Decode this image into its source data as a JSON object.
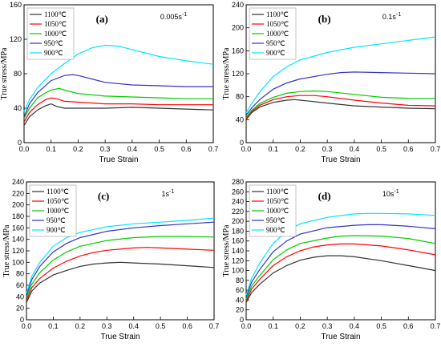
{
  "chart_data": [
    {
      "type": "line",
      "panel_label": "(a)",
      "rate_label": "0.005s",
      "rate_sup": "-1",
      "xlabel": "True Strain",
      "ylabel": "True stress/MPa",
      "xlim": [
        0,
        0.7
      ],
      "ylim": [
        0,
        160
      ],
      "xticks": [
        0.0,
        0.1,
        0.2,
        0.3,
        0.4,
        0.5,
        0.6,
        0.7
      ],
      "yticks": [
        0,
        40,
        80,
        120,
        160
      ],
      "tick_labels_x": [
        "0.0",
        "0.1",
        "0.2",
        "0.3",
        "0.4",
        "0.5",
        "0.6",
        "0.7"
      ],
      "tick_labels_y": [
        "0",
        "40",
        "80",
        "120",
        "160"
      ],
      "legend_pos": "top-left",
      "series": [
        {
          "name": "1100℃",
          "color": "#333333",
          "x": [
            0,
            0.02,
            0.05,
            0.08,
            0.1,
            0.12,
            0.15,
            0.2,
            0.3,
            0.4,
            0.5,
            0.6,
            0.7
          ],
          "y": [
            20,
            30,
            38,
            43,
            45,
            42,
            40,
            40,
            40,
            41,
            40,
            39,
            38
          ]
        },
        {
          "name": "1050℃",
          "color": "#ff0000",
          "x": [
            0,
            0.02,
            0.05,
            0.08,
            0.1,
            0.12,
            0.15,
            0.2,
            0.3,
            0.4,
            0.5,
            0.6,
            0.7
          ],
          "y": [
            24,
            35,
            44,
            50,
            52,
            51,
            48,
            47,
            45,
            45,
            44,
            44,
            44
          ]
        },
        {
          "name": "1000℃",
          "color": "#00cc00",
          "x": [
            0,
            0.02,
            0.05,
            0.08,
            0.1,
            0.13,
            0.16,
            0.2,
            0.3,
            0.4,
            0.5,
            0.6,
            0.7
          ],
          "y": [
            28,
            40,
            52,
            58,
            61,
            63,
            60,
            57,
            54,
            53,
            52,
            51,
            51
          ]
        },
        {
          "name": "950℃",
          "color": "#3333cc",
          "x": [
            0,
            0.02,
            0.05,
            0.1,
            0.15,
            0.18,
            0.2,
            0.25,
            0.3,
            0.4,
            0.5,
            0.6,
            0.7
          ],
          "y": [
            30,
            45,
            58,
            72,
            78,
            79,
            78,
            74,
            70,
            67,
            66,
            65,
            65
          ]
        },
        {
          "name": "900℃",
          "color": "#00e5ff",
          "x": [
            0,
            0.02,
            0.05,
            0.1,
            0.15,
            0.2,
            0.25,
            0.3,
            0.35,
            0.4,
            0.5,
            0.6,
            0.7
          ],
          "y": [
            36,
            50,
            64,
            80,
            92,
            103,
            110,
            113,
            112,
            108,
            100,
            95,
            91
          ]
        }
      ]
    },
    {
      "type": "line",
      "panel_label": "(b)",
      "rate_label": "0.1s",
      "rate_sup": "-1",
      "xlabel": "True Strain",
      "ylabel": "True stress/MPa",
      "xlim": [
        0,
        0.7
      ],
      "ylim": [
        0,
        240
      ],
      "xticks": [
        0.0,
        0.1,
        0.2,
        0.3,
        0.4,
        0.5,
        0.6,
        0.7
      ],
      "yticks": [
        0,
        40,
        80,
        120,
        160,
        200,
        240
      ],
      "tick_labels_x": [
        "0.0",
        "0.1",
        "0.2",
        "0.3",
        "0.4",
        "0.5",
        "0.6",
        "0.7"
      ],
      "tick_labels_y": [
        "0",
        "40",
        "80",
        "120",
        "160",
        "200",
        "240"
      ],
      "legend_pos": "top-left",
      "series": [
        {
          "name": "1100℃",
          "color": "#333333",
          "x": [
            0,
            0.02,
            0.05,
            0.1,
            0.15,
            0.18,
            0.2,
            0.3,
            0.4,
            0.5,
            0.6,
            0.7
          ],
          "y": [
            40,
            52,
            62,
            70,
            74,
            75,
            74,
            69,
            64,
            62,
            60,
            59
          ]
        },
        {
          "name": "1050℃",
          "color": "#ff0000",
          "x": [
            0,
            0.02,
            0.05,
            0.1,
            0.15,
            0.2,
            0.25,
            0.3,
            0.4,
            0.5,
            0.6,
            0.7
          ],
          "y": [
            42,
            54,
            65,
            75,
            80,
            82,
            82,
            80,
            74,
            69,
            65,
            64
          ]
        },
        {
          "name": "1000℃",
          "color": "#00cc00",
          "x": [
            0,
            0.02,
            0.05,
            0.1,
            0.15,
            0.2,
            0.25,
            0.3,
            0.4,
            0.5,
            0.6,
            0.7
          ],
          "y": [
            44,
            56,
            68,
            79,
            86,
            89,
            90,
            89,
            84,
            79,
            77,
            77
          ]
        },
        {
          "name": "950℃",
          "color": "#3333cc",
          "x": [
            0,
            0.02,
            0.05,
            0.1,
            0.15,
            0.2,
            0.3,
            0.35,
            0.4,
            0.5,
            0.6,
            0.7
          ],
          "y": [
            48,
            60,
            75,
            93,
            104,
            111,
            119,
            122,
            123,
            122,
            121,
            120
          ]
        },
        {
          "name": "900℃",
          "color": "#00e5ff",
          "x": [
            0,
            0.02,
            0.05,
            0.1,
            0.15,
            0.2,
            0.3,
            0.4,
            0.5,
            0.6,
            0.7
          ],
          "y": [
            52,
            68,
            88,
            115,
            132,
            144,
            157,
            166,
            172,
            178,
            184
          ]
        }
      ]
    },
    {
      "type": "line",
      "panel_label": "(c)",
      "rate_label": "1s",
      "rate_sup": "-1",
      "xlabel": "True Strain",
      "ylabel": "True stress/MPa",
      "xlim": [
        0,
        0.7
      ],
      "ylim": [
        0,
        240
      ],
      "xticks": [
        0.0,
        0.1,
        0.2,
        0.3,
        0.4,
        0.5,
        0.6,
        0.7
      ],
      "yticks": [
        0,
        20,
        40,
        60,
        80,
        100,
        120,
        140,
        160,
        180,
        200,
        220,
        240
      ],
      "tick_labels_x": [
        "0.0",
        "0.1",
        "0.2",
        "0.3",
        "0.4",
        "0.5",
        "0.6",
        "0.7"
      ],
      "tick_labels_y": [
        "0",
        "20",
        "40",
        "60",
        "80",
        "100",
        "120",
        "140",
        "160",
        "180",
        "200",
        "220",
        "240"
      ],
      "legend_pos": "top-left",
      "series": [
        {
          "name": "1100℃",
          "color": "#333333",
          "x": [
            0,
            0.02,
            0.05,
            0.1,
            0.15,
            0.2,
            0.25,
            0.3,
            0.35,
            0.4,
            0.5,
            0.6,
            0.7
          ],
          "y": [
            30,
            50,
            64,
            78,
            86,
            93,
            97,
            99,
            100,
            99,
            97,
            94,
            91
          ]
        },
        {
          "name": "1050℃",
          "color": "#ff0000",
          "x": [
            0,
            0.02,
            0.05,
            0.1,
            0.15,
            0.2,
            0.25,
            0.3,
            0.4,
            0.45,
            0.5,
            0.6,
            0.7
          ],
          "y": [
            34,
            56,
            72,
            90,
            102,
            111,
            117,
            121,
            125,
            126,
            125,
            123,
            121
          ]
        },
        {
          "name": "1000℃",
          "color": "#00cc00",
          "x": [
            0,
            0.02,
            0.05,
            0.1,
            0.15,
            0.2,
            0.3,
            0.4,
            0.5,
            0.6,
            0.7
          ],
          "y": [
            38,
            62,
            82,
            104,
            118,
            128,
            138,
            143,
            145,
            145,
            144
          ]
        },
        {
          "name": "950℃",
          "color": "#3333cc",
          "x": [
            0,
            0.02,
            0.05,
            0.1,
            0.15,
            0.2,
            0.3,
            0.4,
            0.5,
            0.6,
            0.7
          ],
          "y": [
            42,
            70,
            93,
            118,
            133,
            143,
            154,
            160,
            164,
            167,
            170
          ]
        },
        {
          "name": "900℃",
          "color": "#00e5ff",
          "x": [
            0,
            0.02,
            0.05,
            0.1,
            0.15,
            0.2,
            0.3,
            0.4,
            0.5,
            0.6,
            0.7
          ],
          "y": [
            46,
            76,
            100,
            128,
            143,
            152,
            162,
            167,
            170,
            173,
            177
          ]
        }
      ]
    },
    {
      "type": "line",
      "panel_label": "(d)",
      "rate_label": "10s",
      "rate_sup": "-1",
      "xlabel": "True Strain",
      "ylabel": "True stress/MPa",
      "xlim": [
        0,
        0.7
      ],
      "ylim": [
        0,
        280
      ],
      "xticks": [
        0.0,
        0.1,
        0.2,
        0.3,
        0.4,
        0.5,
        0.6,
        0.7
      ],
      "yticks": [
        0,
        20,
        40,
        60,
        80,
        100,
        120,
        140,
        160,
        180,
        200,
        220,
        240,
        260,
        280
      ],
      "tick_labels_x": [
        "0.0",
        "0.1",
        "0.2",
        "0.3",
        "0.4",
        "0.5",
        "0.6",
        "0.7"
      ],
      "tick_labels_y": [
        "0",
        "20",
        "40",
        "60",
        "80",
        "100",
        "120",
        "140",
        "160",
        "180",
        "200",
        "220",
        "240",
        "260",
        "280"
      ],
      "legend_pos": "top-left",
      "series": [
        {
          "name": "1100℃",
          "color": "#333333",
          "x": [
            0,
            0.02,
            0.05,
            0.1,
            0.15,
            0.2,
            0.25,
            0.3,
            0.35,
            0.4,
            0.5,
            0.6,
            0.7
          ],
          "y": [
            35,
            55,
            72,
            95,
            110,
            121,
            127,
            130,
            130,
            128,
            120,
            110,
            100
          ]
        },
        {
          "name": "1050℃",
          "color": "#ff0000",
          "x": [
            0,
            0.02,
            0.05,
            0.1,
            0.15,
            0.2,
            0.25,
            0.3,
            0.35,
            0.4,
            0.5,
            0.6,
            0.7
          ],
          "y": [
            38,
            62,
            82,
            110,
            128,
            140,
            148,
            152,
            154,
            154,
            150,
            142,
            132
          ]
        },
        {
          "name": "1000℃",
          "color": "#00cc00",
          "x": [
            0,
            0.02,
            0.05,
            0.1,
            0.15,
            0.2,
            0.3,
            0.35,
            0.4,
            0.5,
            0.6,
            0.7
          ],
          "y": [
            42,
            68,
            90,
            122,
            142,
            155,
            166,
            170,
            171,
            170,
            165,
            155
          ]
        },
        {
          "name": "950℃",
          "color": "#3333cc",
          "x": [
            0,
            0.02,
            0.05,
            0.1,
            0.15,
            0.2,
            0.3,
            0.4,
            0.45,
            0.5,
            0.6,
            0.7
          ],
          "y": [
            46,
            76,
            102,
            138,
            160,
            174,
            187,
            192,
            193,
            193,
            190,
            185
          ]
        },
        {
          "name": "900℃",
          "color": "#00e5ff",
          "x": [
            0,
            0.02,
            0.05,
            0.1,
            0.15,
            0.2,
            0.3,
            0.4,
            0.45,
            0.5,
            0.6,
            0.7
          ],
          "y": [
            50,
            84,
            115,
            155,
            180,
            195,
            208,
            215,
            216,
            216,
            215,
            212
          ]
        }
      ]
    }
  ]
}
